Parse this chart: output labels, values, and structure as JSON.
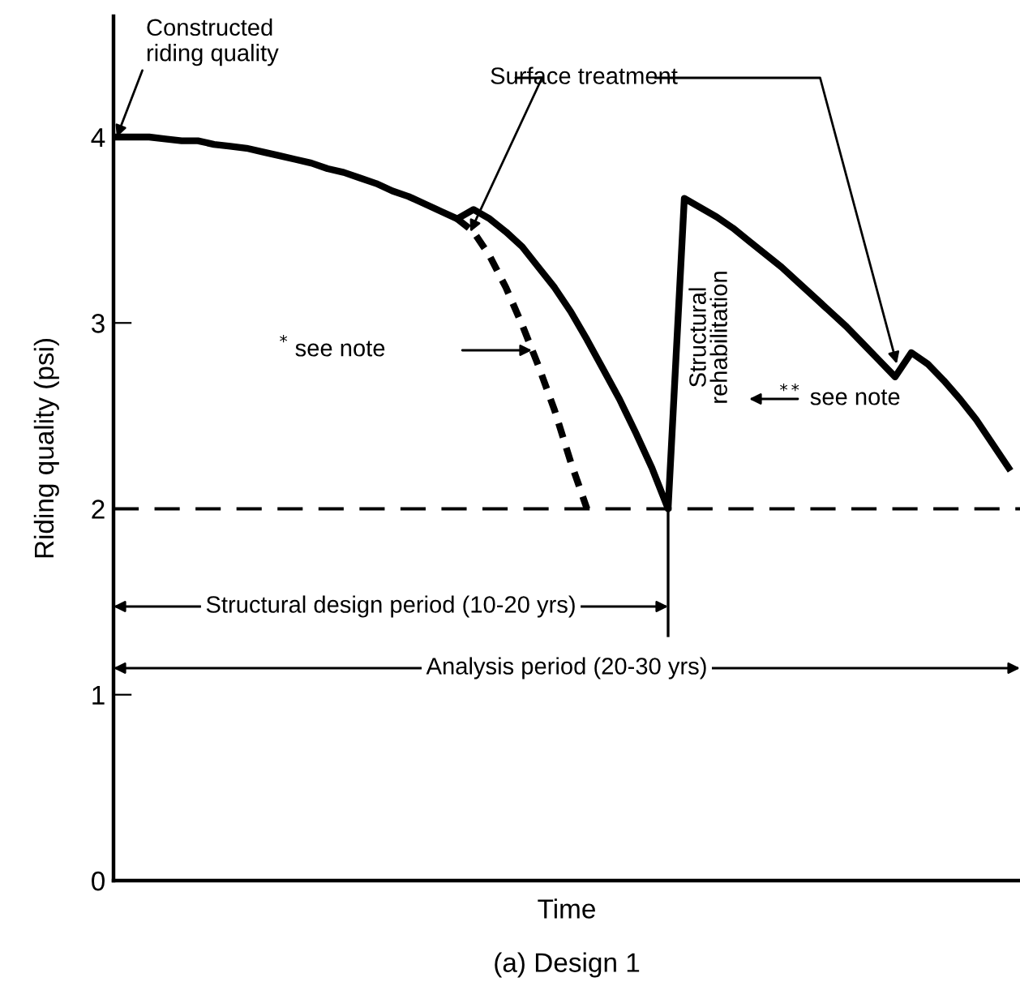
{
  "chart_data": {
    "type": "line",
    "xlabel": "Time",
    "ylabel": "Riding quality (psi)",
    "categories": [
      null,
      null,
      null,
      null,
      null,
      null,
      null,
      null,
      null,
      null,
      null,
      null,
      null,
      null,
      null,
      null,
      null,
      null,
      null,
      null,
      null,
      null,
      null,
      null,
      null,
      null,
      null,
      null,
      null,
      null,
      null,
      null,
      null,
      null,
      null,
      null,
      null,
      null,
      null,
      null,
      null,
      null,
      null,
      null,
      null,
      null,
      null,
      null,
      null,
      null,
      null,
      null,
      null,
      null,
      null,
      null
    ],
    "ylim": [
      0,
      4.65
    ],
    "yticks": [
      0,
      1,
      2,
      3,
      4
    ],
    "tick_labels": "y",
    "grid": false,
    "legend": false,
    "marker": "none",
    "series": [
      {
        "color": "#000000",
        "line_style": "solid",
        "values": [
          4.0,
          4.0,
          4.0,
          3.99,
          3.98,
          3.98,
          3.96,
          3.95,
          3.94,
          3.92,
          3.9,
          3.88,
          3.86,
          3.83,
          3.81,
          3.78,
          3.75,
          3.71,
          3.68,
          3.64,
          3.6,
          3.56,
          3.61,
          3.56,
          3.49,
          3.41,
          3.3,
          3.19,
          3.06,
          2.91,
          2.75,
          2.59,
          2.41,
          2.22,
          2.0,
          3.67,
          3.62,
          3.57,
          3.51,
          3.44,
          3.37,
          3.3,
          3.22,
          3.14,
          3.06,
          2.98,
          2.89,
          2.8,
          2.71,
          2.84,
          2.78,
          2.69,
          2.59,
          2.48,
          2.35,
          2.22
        ]
      },
      {
        "color": "#000000",
        "line_style": "dotted",
        "values": [
          null,
          null,
          null,
          null,
          null,
          null,
          null,
          null,
          null,
          null,
          null,
          null,
          null,
          null,
          null,
          null,
          null,
          null,
          null,
          null,
          null,
          3.56,
          3.49,
          3.36,
          3.19,
          2.99,
          2.77,
          2.53,
          2.25,
          2.0,
          null,
          null,
          null,
          null,
          null,
          null,
          null,
          null,
          null,
          null,
          null,
          null,
          null,
          null,
          null,
          null,
          null,
          null,
          null,
          null,
          null,
          null,
          null,
          null,
          null,
          null
        ]
      }
    ],
    "ref_lines": [
      {
        "axis": "y",
        "value": 2,
        "label": null,
        "color": "#000000",
        "line_style": "dashed"
      }
    ],
    "annotations": [
      "Constructed\nriding quality",
      "Surface treatment",
      "$^{*}$ see note",
      "Structural\nrehabilitation",
      "$^{**}$ see note",
      "Structural design period (10-20 yrs)",
      "Analysis period (20-30 yrs)",
      "(a) Design 1"
    ]
  }
}
